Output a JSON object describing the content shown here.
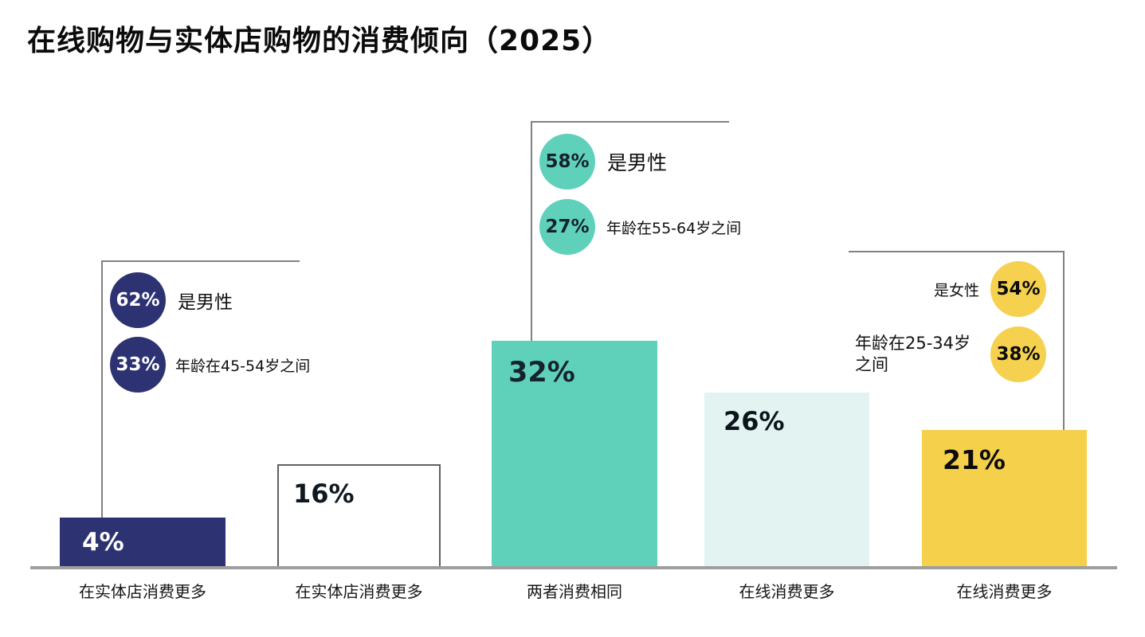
{
  "title": "在线购物与实体店购物的消费倾向（2025）",
  "colors": {
    "navy": "#2d3272",
    "teal": "#5fd1bb",
    "light_cyan": "#e2f3f1",
    "yellow": "#f5d04b",
    "leader_line": "#828282",
    "baseline": "#9e9e9e",
    "dark_text": "#16222e"
  },
  "chart_data": {
    "type": "bar",
    "title": "在线购物与实体店购物的消费倾向（2025）",
    "categories": [
      "在实体店消费更多",
      "在实体店消费更多",
      "两者消费相同",
      "在线消费更多",
      "在线消费更多"
    ],
    "values": [
      4,
      16,
      32,
      26,
      21
    ],
    "value_labels": [
      "4%",
      "16%",
      "32%",
      "26%",
      "21%"
    ],
    "unit": "%",
    "ylim": [
      0,
      35
    ],
    "grid": false,
    "legend": false,
    "bar_colors": [
      "#2d3272",
      "#ffffff",
      "#5fd1bb",
      "#e2f3f1",
      "#f5d04b"
    ],
    "annotations": [
      {
        "target_category_index": 0,
        "stats": [
          {
            "value": "62%",
            "label": "是男性"
          },
          {
            "value": "33%",
            "label": "年龄在45-54岁之间"
          }
        ]
      },
      {
        "target_category_index": 2,
        "stats": [
          {
            "value": "58%",
            "label": "是男性"
          },
          {
            "value": "27%",
            "label": "年龄在55-64岁之间"
          }
        ]
      },
      {
        "target_category_index": 4,
        "stats": [
          {
            "value": "54%",
            "label": "是女性"
          },
          {
            "value": "38%",
            "label": "年龄在25-34岁之间"
          }
        ]
      }
    ]
  }
}
